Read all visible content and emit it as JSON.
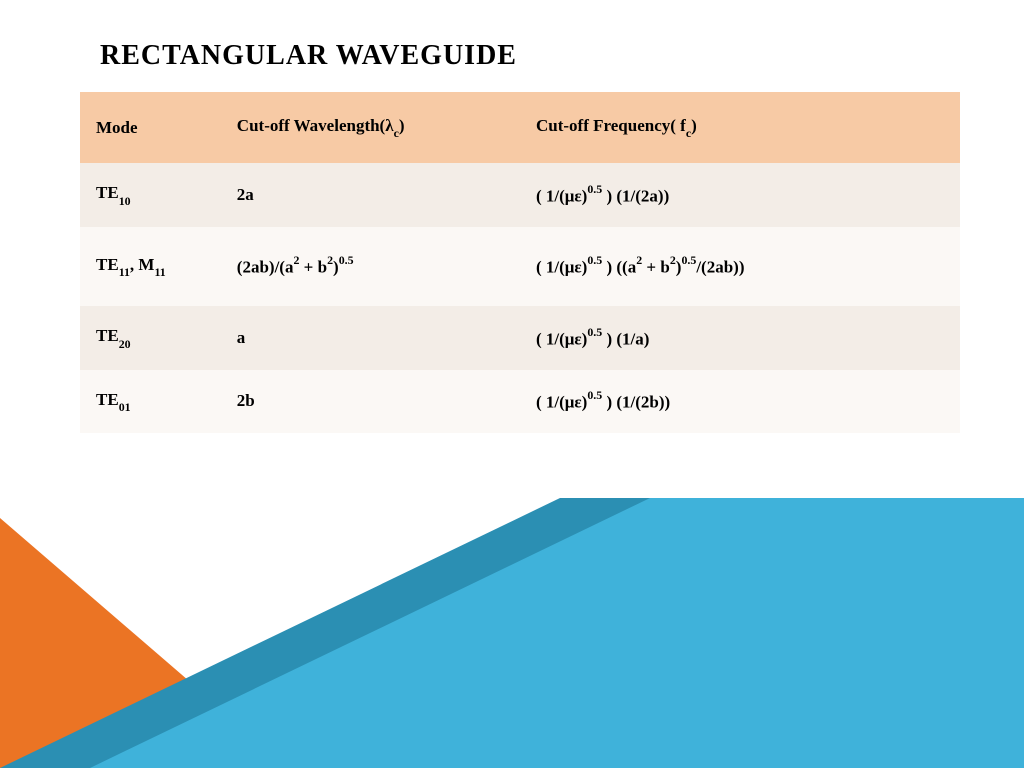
{
  "title": "RECTANGULAR WAVEGUIDE",
  "table": {
    "header_bg": "#f7caa5",
    "row_odd_bg": "#f3ede7",
    "row_even_bg": "#fbf8f5",
    "columns": [
      {
        "label_html": "Mode"
      },
      {
        "label_html": "Cut-off Wavelength(λ<span class=\"sub\">c</span>)"
      },
      {
        "label_html": "Cut-off Frequency( f<span class=\"sub\">c</span>)"
      }
    ],
    "rows": [
      {
        "mode_html": "TE<span class=\"sub\">10</span>",
        "wavelength_html": "2a",
        "frequency_html": "( 1/(με)<span class=\"sup\">0.5</span> )  (1/(2a))"
      },
      {
        "mode_html": "TE<span class=\"sub\">11</span>, M<span class=\"sub\">11</span>",
        "wavelength_html": "(2ab)/(a<span class=\"sup\">2</span> + b<span class=\"sup\">2</span>)<span class=\"sup\">0.5</span>",
        "frequency_html": "( 1/(με)<span class=\"sup\">0.5</span> )  ((a<span class=\"sup\">2</span> + b<span class=\"sup\">2</span>)<span class=\"sup\">0.5</span>/(2ab))"
      },
      {
        "mode_html": "TE<span class=\"sub\">20</span>",
        "wavelength_html": "a",
        "frequency_html": "( 1/(με)<span class=\"sup\">0.5</span> )  (1/a)"
      },
      {
        "mode_html": "TE<span class=\"sub\">01</span>",
        "wavelength_html": "2b",
        "frequency_html": "( 1/(με)<span class=\"sup\">0.5</span> )  (1/(2b))"
      }
    ]
  },
  "footer": {
    "orange_color": "#eb7424",
    "teal_dark_color": "#2b8fb3",
    "teal_light_color": "#3fb2da"
  }
}
